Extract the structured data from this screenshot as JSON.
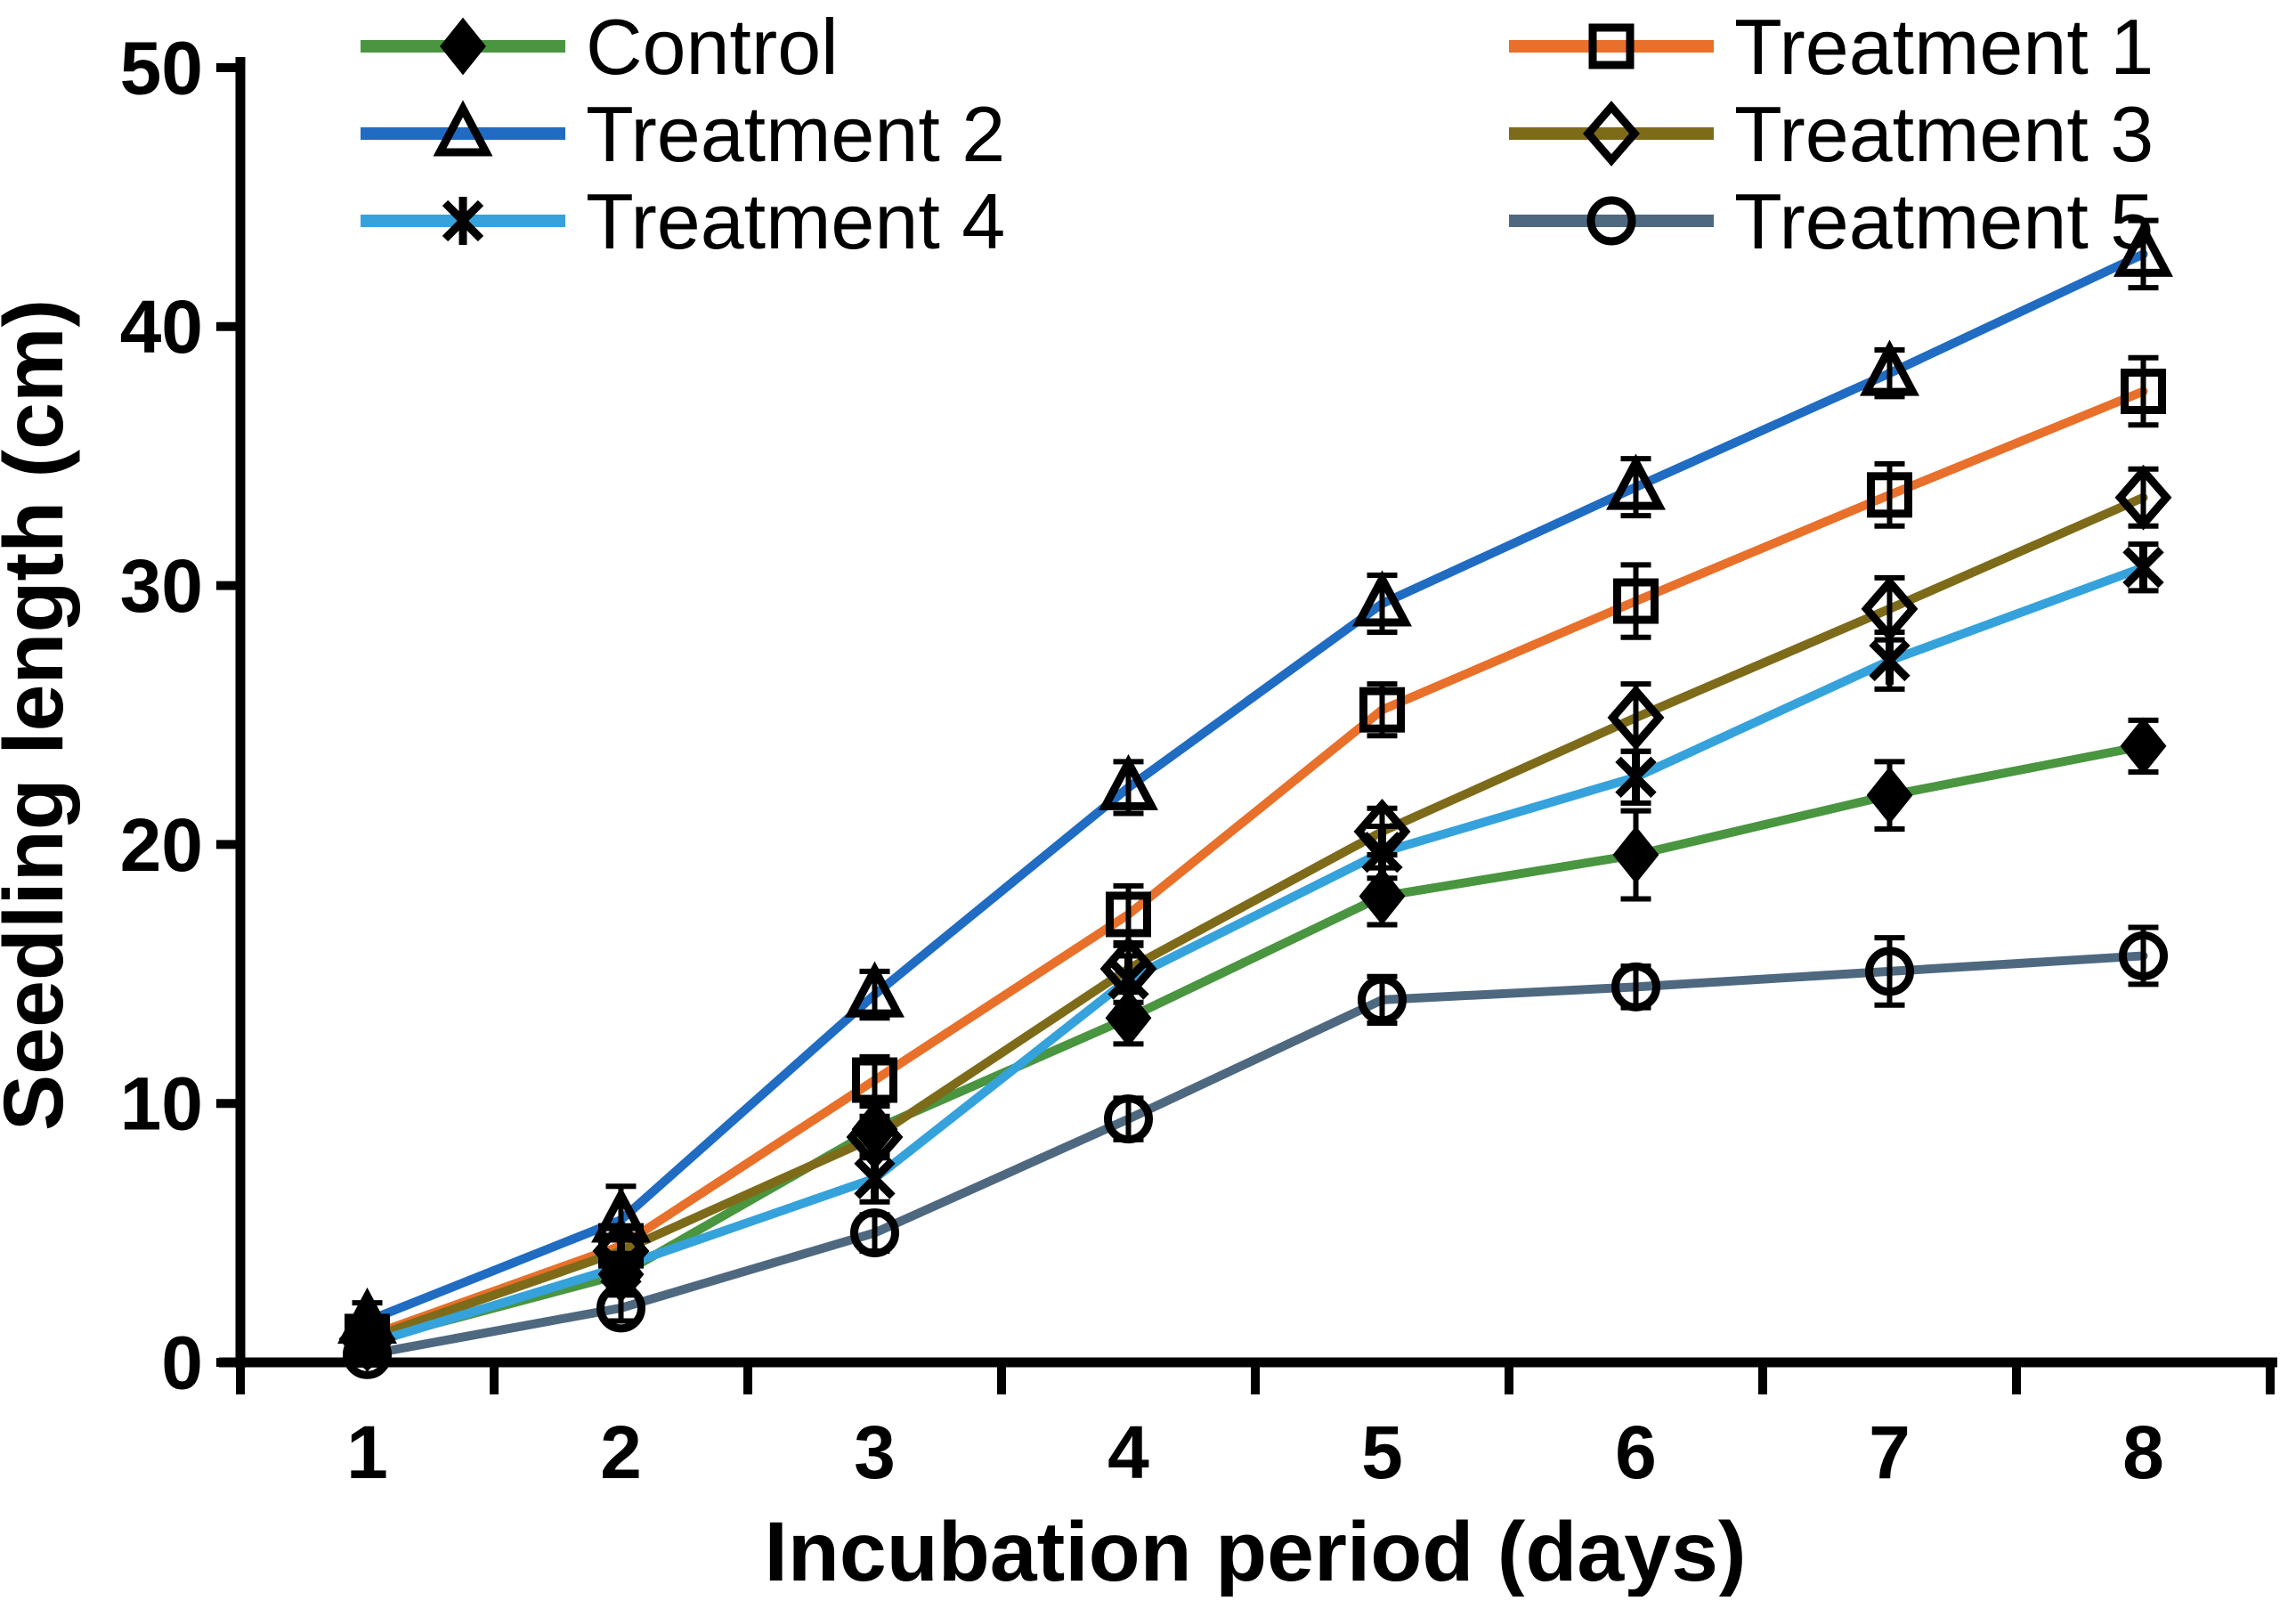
{
  "figure": {
    "background": "#ffffff",
    "axis_color": "#000000"
  },
  "chart_data": {
    "type": "line",
    "title": "",
    "xlabel": "Incubation period (days)",
    "ylabel": "Seedling length (cm)",
    "x": [
      1,
      2,
      3,
      4,
      5,
      6,
      7,
      8
    ],
    "x_tick_labels": [
      "1",
      "2",
      "3",
      "4",
      "5",
      "6",
      "7",
      "8"
    ],
    "ylim": [
      0,
      50
    ],
    "yticks": [
      0,
      10,
      20,
      30,
      40,
      50
    ],
    "grid": false,
    "error_bars": true,
    "legend_position": "top-two-columns",
    "legend_order": [
      "Control",
      "Treatment 1",
      "Treatment 2",
      "Treatment 3",
      "Treatment 4",
      "Treatment 5"
    ],
    "series": [
      {
        "name": "Control",
        "color": "#4a9540",
        "marker": "diamond-filled",
        "marker_color": "#000000",
        "values": [
          0.8,
          3.4,
          9.0,
          13.3,
          18.0,
          19.6,
          21.9,
          23.8
        ],
        "errors": [
          0.6,
          0.5,
          0.9,
          1.0,
          1.1,
          1.7,
          1.3,
          1.0
        ]
      },
      {
        "name": "Treatment 1",
        "color": "#e8702a",
        "marker": "square-open",
        "marker_color": "#000000",
        "values": [
          1.0,
          4.5,
          10.9,
          17.3,
          25.2,
          29.4,
          33.5,
          37.5
        ],
        "errors": [
          0.5,
          0.7,
          0.9,
          1.1,
          1.0,
          1.4,
          1.2,
          1.3
        ]
      },
      {
        "name": "Treatment 2",
        "color": "#1f6cc2",
        "marker": "triangle-open",
        "marker_color": "#000000",
        "values": [
          1.6,
          5.5,
          14.2,
          22.2,
          29.3,
          33.8,
          38.2,
          42.8
        ],
        "errors": [
          0.7,
          1.3,
          0.9,
          1.0,
          1.1,
          1.1,
          0.9,
          1.3
        ]
      },
      {
        "name": "Treatment 3",
        "color": "#7d6b1a",
        "marker": "diamond-open",
        "marker_color": "#000000",
        "values": [
          0.9,
          4.3,
          8.7,
          15.2,
          20.5,
          24.9,
          29.1,
          33.4
        ],
        "errors": [
          0.5,
          0.6,
          0.8,
          0.9,
          0.9,
          1.3,
          1.2,
          1.1
        ]
      },
      {
        "name": "Treatment 4",
        "color": "#35a2dc",
        "marker": "asterisk",
        "marker_color": "#000000",
        "values": [
          0.7,
          3.7,
          7.1,
          14.8,
          19.7,
          22.6,
          27.1,
          30.7
        ],
        "errors": [
          0.4,
          0.5,
          0.9,
          0.9,
          1.0,
          1.0,
          1.1,
          0.9
        ]
      },
      {
        "name": "Treatment 5",
        "color": "#4e6880",
        "marker": "circle-open",
        "marker_color": "#000000",
        "values": [
          0.3,
          2.1,
          5.0,
          9.4,
          14.0,
          14.5,
          15.1,
          15.7
        ],
        "errors": [
          0.4,
          0.5,
          0.7,
          0.8,
          0.9,
          0.8,
          1.3,
          1.1
        ]
      }
    ]
  }
}
